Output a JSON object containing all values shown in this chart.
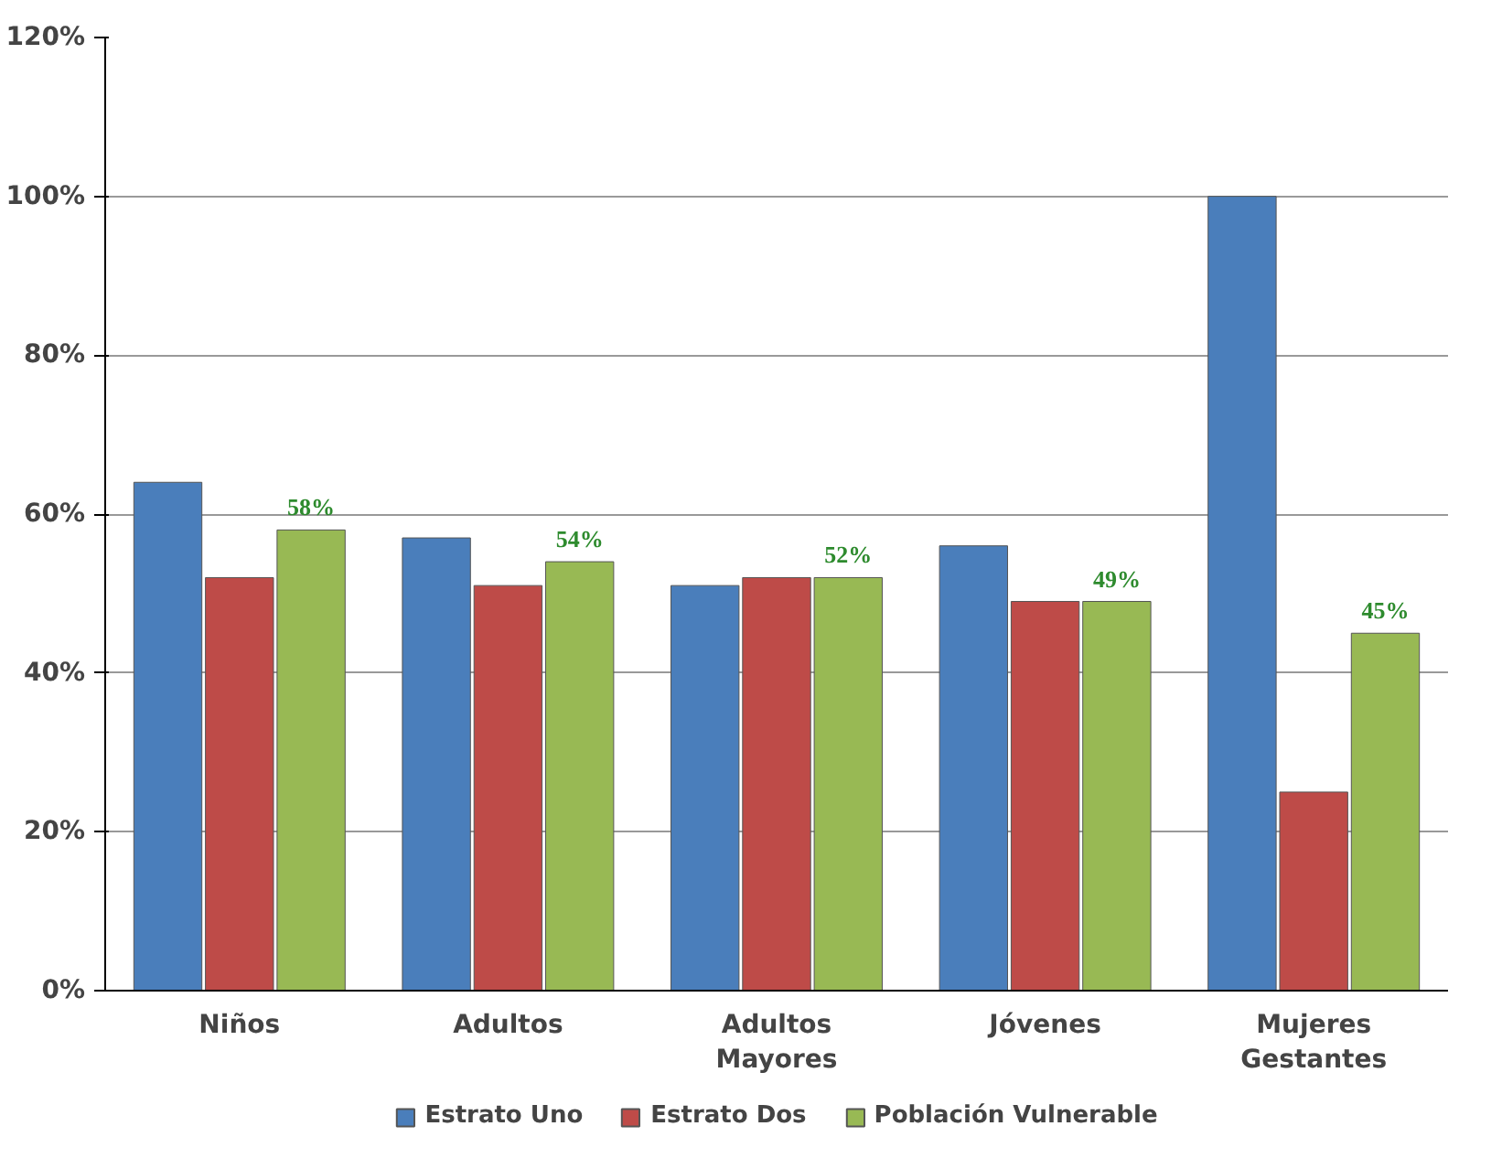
{
  "chart_data": {
    "type": "bar",
    "categories": [
      "Niños",
      "Adultos",
      "Adultos\nMayores",
      "Jóvenes",
      "Mujeres\nGestantes"
    ],
    "series": [
      {
        "name": "Estrato Uno",
        "color": "#4a7ebb",
        "values": [
          64,
          57,
          51,
          56,
          100
        ]
      },
      {
        "name": "Estrato Dos",
        "color": "#be4b48",
        "values": [
          52,
          51,
          52,
          49,
          25
        ]
      },
      {
        "name": "Población Vulnerable",
        "color": "#98b954",
        "values": [
          58,
          54,
          52,
          49,
          45
        ],
        "value_labels": [
          "58%",
          "54%",
          "52%",
          "49%",
          "45%"
        ]
      }
    ],
    "ylim": [
      0,
      120
    ],
    "yticks": [
      {
        "value": 0,
        "label": "0%"
      },
      {
        "value": 20,
        "label": "20%"
      },
      {
        "value": 40,
        "label": "40%"
      },
      {
        "value": 60,
        "label": "60%"
      },
      {
        "value": 80,
        "label": "80%"
      },
      {
        "value": 100,
        "label": "100%"
      },
      {
        "value": 120,
        "label": "120%"
      }
    ],
    "grid": "y",
    "legend": "bottom"
  }
}
